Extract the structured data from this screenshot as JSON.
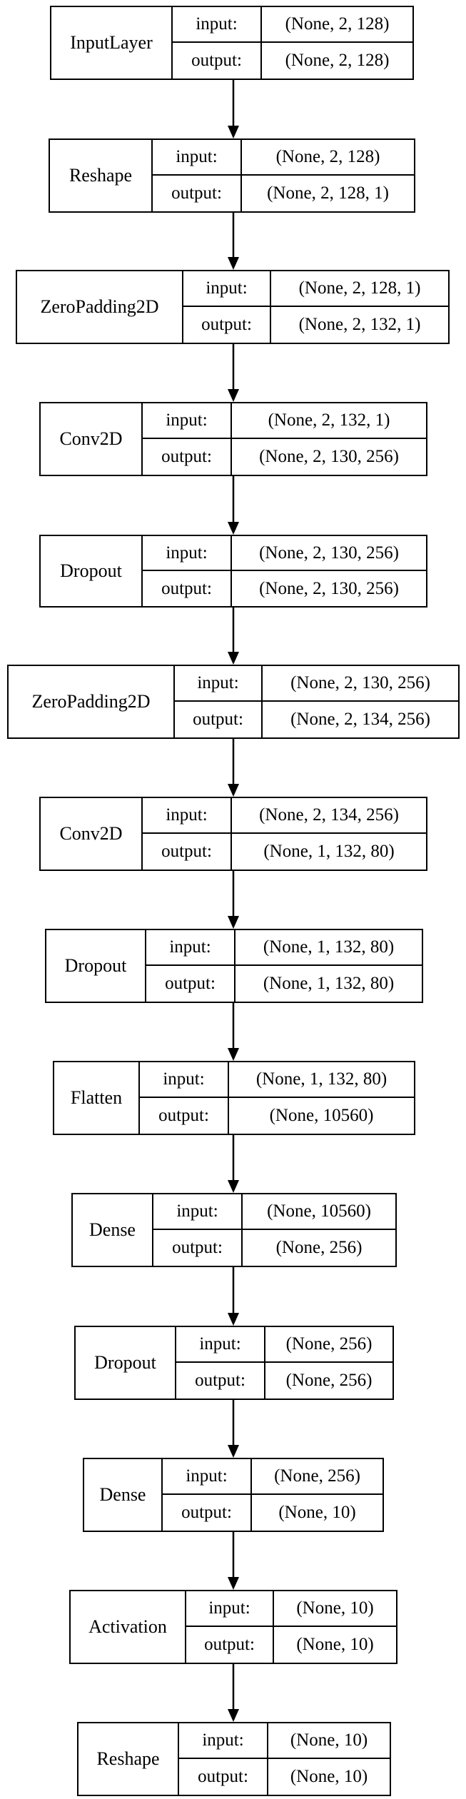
{
  "colors": {
    "line": "#000000",
    "background": "#ffffff"
  },
  "port_labels": {
    "input": "input:",
    "output": "output:"
  },
  "layers": [
    {
      "name": "InputLayer",
      "input": "(None, 2, 128)",
      "output": "(None, 2, 128)"
    },
    {
      "name": "Reshape",
      "input": "(None, 2, 128)",
      "output": "(None, 2, 128, 1)"
    },
    {
      "name": "ZeroPadding2D",
      "input": "(None, 2, 128, 1)",
      "output": "(None, 2, 132, 1)"
    },
    {
      "name": "Conv2D",
      "input": "(None, 2, 132, 1)",
      "output": "(None, 2, 130, 256)"
    },
    {
      "name": "Dropout",
      "input": "(None, 2, 130, 256)",
      "output": "(None, 2, 130, 256)"
    },
    {
      "name": "ZeroPadding2D",
      "input": "(None, 2, 130, 256)",
      "output": "(None, 2, 134, 256)"
    },
    {
      "name": "Conv2D",
      "input": "(None, 2, 134, 256)",
      "output": "(None, 1, 132, 80)"
    },
    {
      "name": "Dropout",
      "input": "(None, 1, 132, 80)",
      "output": "(None, 1, 132, 80)"
    },
    {
      "name": "Flatten",
      "input": "(None, 1, 132, 80)",
      "output": "(None, 10560)"
    },
    {
      "name": "Dense",
      "input": "(None, 10560)",
      "output": "(None, 256)"
    },
    {
      "name": "Dropout",
      "input": "(None, 256)",
      "output": "(None, 256)"
    },
    {
      "name": "Dense",
      "input": "(None, 256)",
      "output": "(None, 10)"
    },
    {
      "name": "Activation",
      "input": "(None, 10)",
      "output": "(None, 10)"
    },
    {
      "name": "Reshape",
      "input": "(None, 10)",
      "output": "(None, 10)"
    }
  ]
}
